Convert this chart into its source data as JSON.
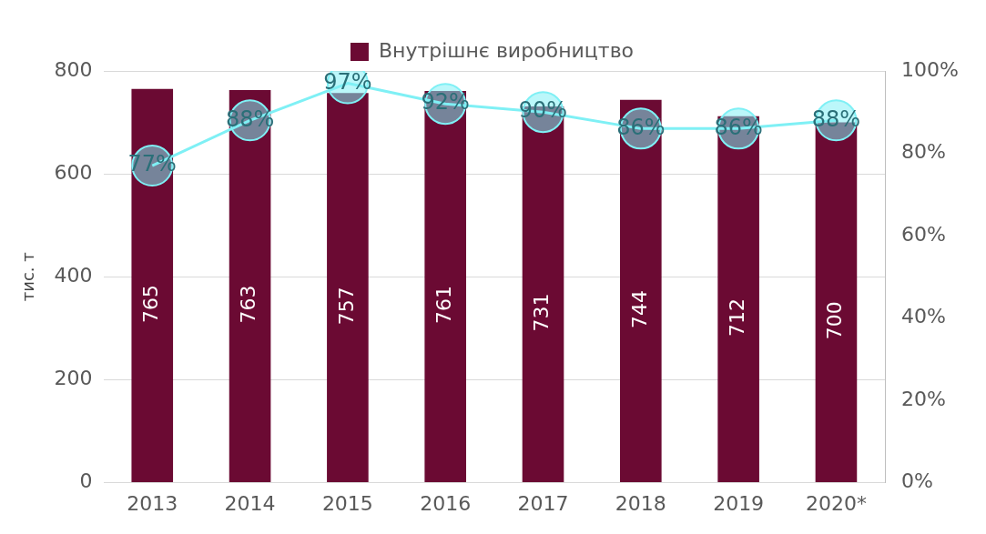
{
  "chart_data": {
    "type": "bar",
    "ylabel": "тис. т",
    "categories": [
      "2013",
      "2014",
      "2015",
      "2016",
      "2017",
      "2018",
      "2019",
      "2020*"
    ],
    "series": [
      {
        "name": "Внутрішнє виробництво",
        "color": "#6b0a33",
        "values": [
          765,
          763,
          757,
          761,
          731,
          744,
          712,
          700
        ],
        "value_labels": [
          "765",
          "763",
          "757",
          "761",
          "731",
          "744",
          "712",
          "700"
        ]
      },
      {
        "type": "line",
        "axis": "y2",
        "color": "#7ff0f5",
        "marker": "circle",
        "values": [
          77,
          88,
          97,
          92,
          90,
          86,
          86,
          88
        ],
        "value_labels": [
          "77%",
          "88%",
          "97%",
          "92%",
          "90%",
          "86%",
          "86%",
          "88%"
        ]
      }
    ],
    "ylim": [
      0,
      800
    ],
    "yticks": [
      0,
      200,
      400,
      600,
      800
    ],
    "y2lim": [
      0,
      100
    ],
    "y2ticks": [
      {
        "value": 0,
        "label": "0%"
      },
      {
        "value": 20,
        "label": "20%"
      },
      {
        "value": 40,
        "label": "40%"
      },
      {
        "value": 60,
        "label": "60%"
      },
      {
        "value": 80,
        "label": "80%"
      },
      {
        "value": 100,
        "label": "100%"
      }
    ],
    "grid": "y",
    "legend": "top"
  }
}
